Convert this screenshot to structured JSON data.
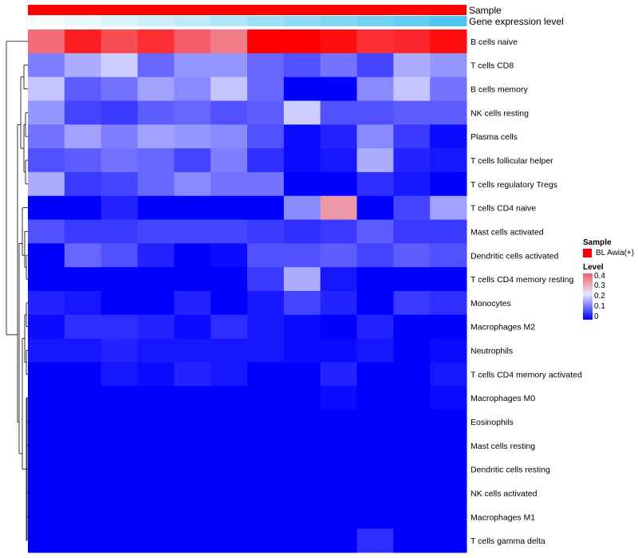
{
  "chart_data": {
    "type": "heatmap",
    "annotations": [
      {
        "label": "Sample"
      },
      {
        "label": "Gene expression level"
      }
    ],
    "rows": [
      "B cells naive",
      "T cells CD8",
      "B cells memory",
      "NK cells resting",
      "Plasma cells",
      "T cells follicular helper",
      "T cells regulatory  Tregs",
      "T cells CD4 naive",
      "Mast cells activated",
      "Dendritic cells activated",
      "T cells CD4 memory resting",
      "Monocytes",
      "Macrophages M2",
      "Neutrophils",
      "T cells CD4 memory activated",
      "Macrophages M0",
      "Eosinophils",
      "Mast cells resting",
      "Dendritic cells resting",
      "NK cells activated",
      "Macrophages M1",
      "T cells gamma delta"
    ],
    "columns": 12,
    "values": [
      [
        0.36,
        0.46,
        0.4,
        0.44,
        0.38,
        0.34,
        0.5,
        0.5,
        0.48,
        0.44,
        0.45,
        0.48
      ],
      [
        0.11,
        0.15,
        0.18,
        0.09,
        0.13,
        0.13,
        0.09,
        0.07,
        0.1,
        0.06,
        0.15,
        0.13
      ],
      [
        0.17,
        0.08,
        0.1,
        0.14,
        0.12,
        0.17,
        0.09,
        0.0,
        0.0,
        0.12,
        0.17,
        0.1
      ],
      [
        0.13,
        0.06,
        0.05,
        0.08,
        0.09,
        0.07,
        0.08,
        0.18,
        0.07,
        0.07,
        0.08,
        0.08
      ],
      [
        0.1,
        0.14,
        0.11,
        0.14,
        0.13,
        0.12,
        0.07,
        0.01,
        0.03,
        0.12,
        0.05,
        0.01
      ],
      [
        0.07,
        0.08,
        0.1,
        0.09,
        0.06,
        0.11,
        0.04,
        0.01,
        0.02,
        0.15,
        0.03,
        0.02
      ],
      [
        0.15,
        0.05,
        0.06,
        0.09,
        0.12,
        0.1,
        0.1,
        0.0,
        0.0,
        0.04,
        0.02,
        0.0
      ],
      [
        0.0,
        0.0,
        0.03,
        0.0,
        0.0,
        0.0,
        0.0,
        0.12,
        0.3,
        0.0,
        0.06,
        0.14
      ],
      [
        0.07,
        0.05,
        0.05,
        0.06,
        0.06,
        0.06,
        0.05,
        0.04,
        0.05,
        0.08,
        0.05,
        0.05
      ],
      [
        0.0,
        0.09,
        0.07,
        0.03,
        0.0,
        0.01,
        0.07,
        0.07,
        0.08,
        0.06,
        0.08,
        0.07
      ],
      [
        0.0,
        0.0,
        0.0,
        0.0,
        0.0,
        0.0,
        0.05,
        0.15,
        0.02,
        0.0,
        0.0,
        0.0
      ],
      [
        0.03,
        0.02,
        0.0,
        0.0,
        0.03,
        0.0,
        0.02,
        0.06,
        0.03,
        0.0,
        0.05,
        0.04
      ],
      [
        0.01,
        0.04,
        0.04,
        0.03,
        0.01,
        0.04,
        0.02,
        0.01,
        0.0,
        0.03,
        0.0,
        0.0
      ],
      [
        0.02,
        0.02,
        0.03,
        0.02,
        0.02,
        0.02,
        0.02,
        0.01,
        0.01,
        0.02,
        0.0,
        0.01
      ],
      [
        0.0,
        0.0,
        0.02,
        0.01,
        0.03,
        0.02,
        0.0,
        0.0,
        0.03,
        0.0,
        0.0,
        0.02
      ],
      [
        0.0,
        0.0,
        0.0,
        0.0,
        0.0,
        0.0,
        0.0,
        0.0,
        0.01,
        0.0,
        0.0,
        0.01
      ],
      [
        0.0,
        0.0,
        0.0,
        0.0,
        0.0,
        0.0,
        0.0,
        0.0,
        0.0,
        0.0,
        0.0,
        0.0
      ],
      [
        0.0,
        0.0,
        0.0,
        0.0,
        0.0,
        0.0,
        0.0,
        0.0,
        0.0,
        0.0,
        0.0,
        0.0
      ],
      [
        0.0,
        0.0,
        0.0,
        0.0,
        0.0,
        0.0,
        0.0,
        0.0,
        0.0,
        0.0,
        0.0,
        0.0
      ],
      [
        0.0,
        0.0,
        0.0,
        0.0,
        0.0,
        0.0,
        0.0,
        0.0,
        0.0,
        0.0,
        0.0,
        0.0
      ],
      [
        0.0,
        0.0,
        0.0,
        0.0,
        0.0,
        0.0,
        0.0,
        0.0,
        0.0,
        0.0,
        0.0,
        0.0
      ],
      [
        0.0,
        0.0,
        0.0,
        0.0,
        0.0,
        0.0,
        0.0,
        0.0,
        0.0,
        0.04,
        0.0,
        0.0
      ]
    ],
    "gene_expression_level": [
      0.02,
      0.08,
      0.14,
      0.2,
      0.26,
      0.32,
      0.38,
      0.44,
      0.5,
      0.56,
      0.62,
      0.7
    ],
    "color_scale": {
      "low": "#0000ff",
      "mid": "#e6e6ff",
      "high": "#ff0000",
      "range": [
        0,
        0.5
      ]
    },
    "legend": {
      "sample_title": "Sample",
      "sample_entry": "BL Awia(+)",
      "sample_color": "#ff0000",
      "level_title": "Level",
      "ticks": [
        "0.4",
        "0.3",
        "0.2",
        "0.1",
        "0"
      ],
      "placement": "right"
    },
    "dendrogram": "rows",
    "annotation_colors": {
      "sample": "#ff0000",
      "expression_low": "#ffffff",
      "expression_high": "#4fc6f0"
    }
  }
}
